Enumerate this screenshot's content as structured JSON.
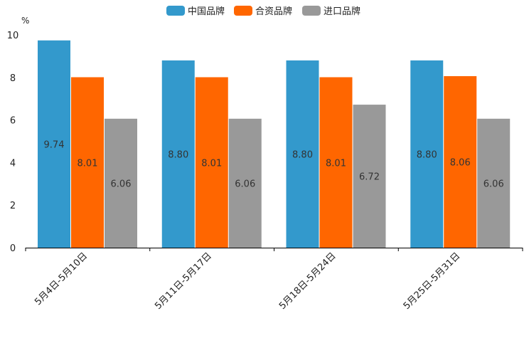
{
  "chart_data": {
    "type": "bar",
    "unit": "%",
    "categories": [
      "5月4日-5月10日",
      "5月11日-5月17日",
      "5月18日-5月24日",
      "5月25日-5月31日"
    ],
    "series": [
      {
        "name": "中国品牌",
        "color": "#3399CC",
        "values": [
          9.74,
          8.8,
          8.8,
          8.8
        ],
        "labels": [
          "9.74",
          "8.80",
          "8.80",
          "8.80"
        ]
      },
      {
        "name": "合资品牌",
        "color": "#FF6600",
        "values": [
          8.01,
          8.01,
          8.01,
          8.06
        ],
        "labels": [
          "8.01",
          "8.01",
          "8.01",
          "8.06"
        ]
      },
      {
        "name": "进口品牌",
        "color": "#999999",
        "values": [
          6.06,
          6.06,
          6.72,
          6.06
        ],
        "labels": [
          "6.06",
          "6.06",
          "6.72",
          "6.06"
        ]
      }
    ],
    "yticks": [
      "0",
      "2",
      "4",
      "6",
      "8",
      "10"
    ],
    "ylim": [
      0,
      10
    ],
    "title": "",
    "xlabel": "",
    "ylabel": "%",
    "legend_position": "top-center"
  }
}
